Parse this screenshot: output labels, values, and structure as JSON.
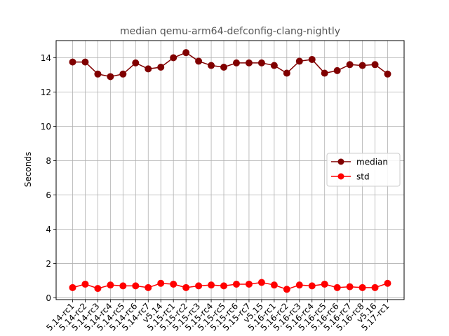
{
  "chart_data": {
    "type": "line",
    "title": "median qemu-arm64-defconfig-clang-nightly",
    "xlabel": "",
    "ylabel": "Seconds",
    "ylim": [
      -0.1,
      15
    ],
    "yticks": [
      0,
      2,
      4,
      6,
      8,
      10,
      12,
      14
    ],
    "grid": true,
    "legend_position": "center-right",
    "categories": [
      "5.14-rc1",
      "5.14-rc2",
      "5.14-rc3",
      "5.14-rc4",
      "5.14-rc5",
      "5.14-rc6",
      "5.14-rc7",
      "v5.14",
      "5.15-rc1",
      "5.15-rc2",
      "5.15-rc3",
      "5.15-rc4",
      "5.15-rc5",
      "5.15-rc6",
      "5.15-rc7",
      "v5.15",
      "5.16-rc1",
      "5.16-rc2",
      "5.16-rc3",
      "5.16-rc4",
      "5.16-rc5",
      "5.16-rc6",
      "5.16-rc7",
      "5.16-rc8",
      "v5.16",
      "5.17-rc1"
    ],
    "series": [
      {
        "name": "median",
        "color": "#800000",
        "values": [
          13.75,
          13.75,
          13.05,
          12.9,
          13.05,
          13.7,
          13.35,
          13.45,
          14.0,
          14.3,
          13.8,
          13.55,
          13.45,
          13.7,
          13.7,
          13.7,
          13.55,
          13.1,
          13.8,
          13.9,
          13.1,
          13.25,
          13.6,
          13.55,
          13.6,
          13.05
        ]
      },
      {
        "name": "std",
        "color": "#ff0000",
        "values": [
          0.6,
          0.8,
          0.55,
          0.75,
          0.7,
          0.7,
          0.6,
          0.85,
          0.8,
          0.6,
          0.7,
          0.75,
          0.7,
          0.8,
          0.8,
          0.9,
          0.75,
          0.5,
          0.75,
          0.7,
          0.8,
          0.6,
          0.65,
          0.6,
          0.6,
          0.85
        ]
      }
    ]
  }
}
